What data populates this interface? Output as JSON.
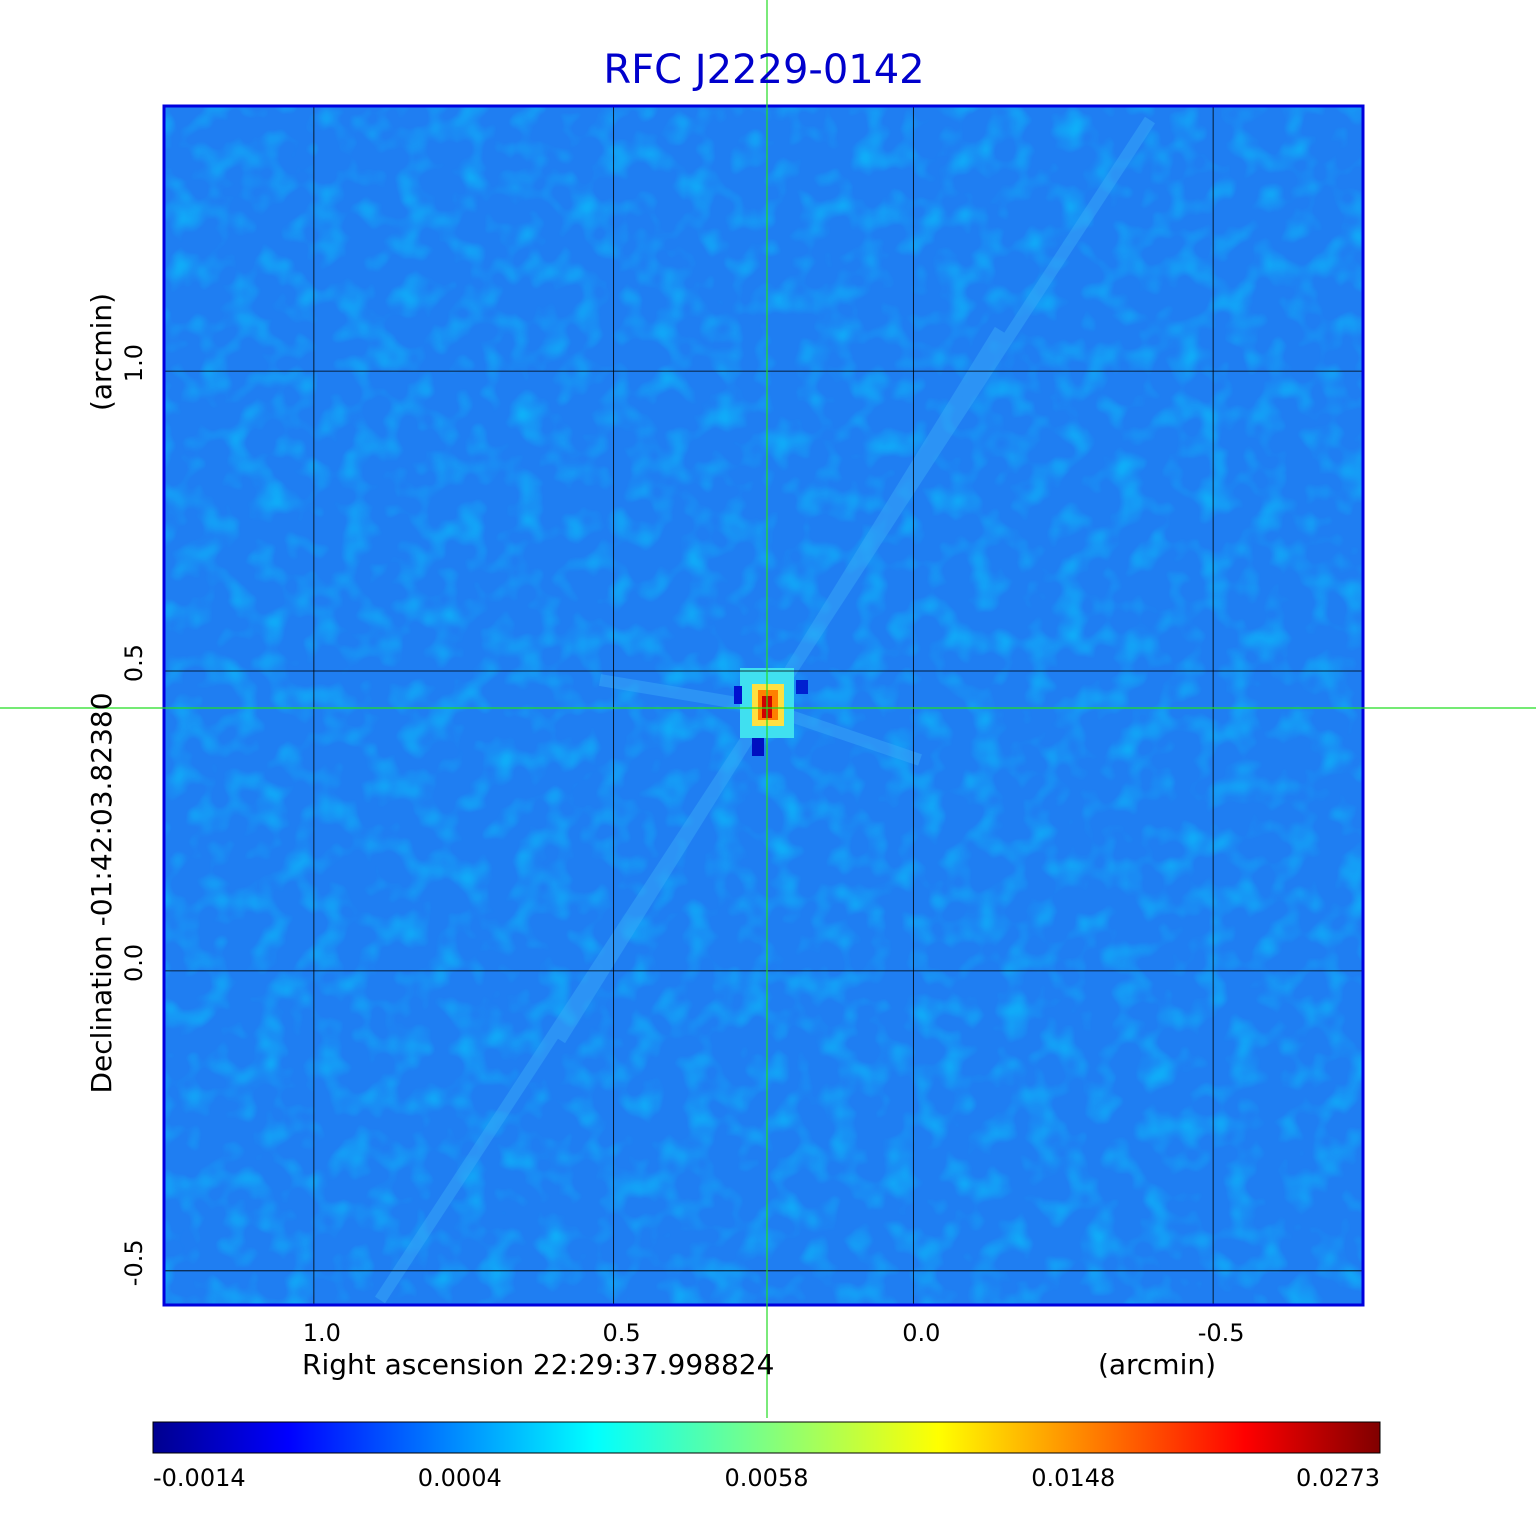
{
  "chart_data": {
    "type": "image",
    "title": "RFC J2229-0142",
    "x_label": "Right ascension  22:29:37.998824",
    "x_unit": "(arcmin)",
    "y_label": "Declination  -01:42:03.82380",
    "y_unit": "(arcmin)",
    "xlim": [
      1.25,
      -0.75
    ],
    "ylim": [
      -0.557,
      1.442
    ],
    "xticks": [
      {
        "value": 1,
        "label": "1.0"
      },
      0.5,
      {
        "value": 0,
        "label": "0.0"
      },
      -0.5
    ],
    "yticks": [
      {
        "value": 1,
        "label": "1.0"
      },
      0.5,
      {
        "value": 0,
        "label": "0.0"
      },
      -0.5
    ],
    "grid": true,
    "colormap": "jet",
    "colorbar_ticks": [
      -0.0014,
      0.0004,
      0.0058,
      0.0148,
      0.0273
    ]
  }
}
